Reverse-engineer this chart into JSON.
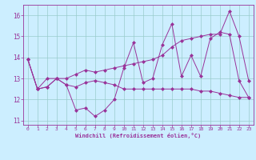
{
  "xlabel": "Windchill (Refroidissement éolien,°C)",
  "background_color": "#cceeff",
  "line_color": "#993399",
  "grid_color": "#99cccc",
  "x_hours": [
    0,
    1,
    2,
    3,
    4,
    5,
    6,
    7,
    8,
    9,
    10,
    11,
    12,
    13,
    14,
    15,
    16,
    17,
    18,
    19,
    20,
    21,
    22,
    23
  ],
  "line1": [
    13.9,
    12.5,
    12.6,
    13.0,
    12.7,
    11.5,
    11.6,
    11.2,
    11.5,
    12.0,
    13.5,
    14.7,
    12.8,
    13.0,
    14.6,
    15.6,
    13.1,
    14.1,
    13.1,
    14.9,
    15.2,
    15.1,
    12.9,
    12.1
  ],
  "line2": [
    13.9,
    12.5,
    12.6,
    13.0,
    12.7,
    12.6,
    12.8,
    12.9,
    12.8,
    12.7,
    12.5,
    12.5,
    12.5,
    12.5,
    12.5,
    12.5,
    12.5,
    12.5,
    12.4,
    12.4,
    12.3,
    12.2,
    12.1,
    12.1
  ],
  "line3": [
    13.9,
    12.5,
    13.0,
    13.0,
    13.0,
    13.2,
    13.4,
    13.3,
    13.4,
    13.5,
    13.6,
    13.7,
    13.8,
    13.9,
    14.1,
    14.5,
    14.8,
    14.9,
    15.0,
    15.1,
    15.1,
    16.2,
    15.0,
    12.9
  ],
  "ylim": [
    10.8,
    16.5
  ],
  "yticks": [
    11,
    12,
    13,
    14,
    15,
    16
  ],
  "xticks": [
    0,
    1,
    2,
    3,
    4,
    5,
    6,
    7,
    8,
    9,
    10,
    11,
    12,
    13,
    14,
    15,
    16,
    17,
    18,
    19,
    20,
    21,
    22,
    23
  ]
}
